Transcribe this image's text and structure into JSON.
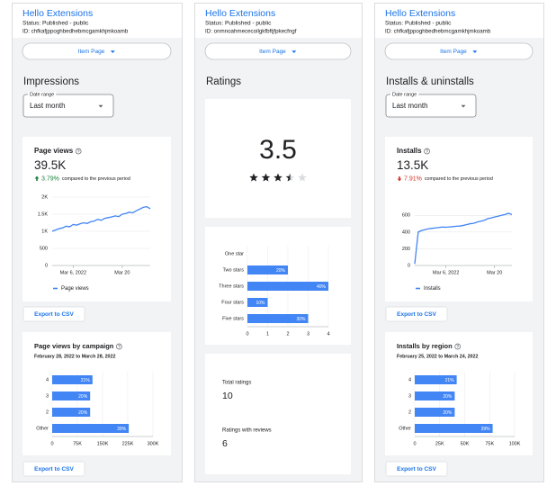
{
  "panels": [
    {
      "header": {
        "title": "Hello Extensions",
        "status": "Status: Published - public",
        "id": "ID: chfkafjppoghbedhebmcgamkhjmkoamb"
      },
      "button": "Item Page",
      "heading": "Impressions",
      "date_range": {
        "label": "Date range",
        "value": "Last month"
      },
      "metric_card": {
        "title": "Page views",
        "value": "39.5K",
        "change": "3.79%",
        "change_direction": "up",
        "comparison": "compared to the previous period",
        "chart": {
          "type": "line",
          "color": "#4285f4",
          "legend": "Page views",
          "values": [
            1000,
            1040,
            1080,
            1100,
            1150,
            1130,
            1200,
            1180,
            1220,
            1250,
            1230,
            1280,
            1300,
            1350,
            1320,
            1380,
            1400,
            1420,
            1450,
            1430,
            1500,
            1520,
            1560,
            1540,
            1600,
            1650,
            1700,
            1720,
            1660
          ],
          "ylim": [
            0,
            2000
          ],
          "yticks": [
            0,
            500,
            {
              "value": 1000,
              "label": "1K"
            },
            {
              "value": 1500,
              "label": "1.5K"
            },
            {
              "value": 2000,
              "label": "2K"
            }
          ],
          "xticks": [
            {
              "value": 6,
              "label": "Mar 6, 2022"
            },
            {
              "value": 20,
              "label": "Mar 20"
            }
          ]
        }
      },
      "exports": [
        "Export to CSV",
        "Export to CSV"
      ],
      "bar_card": {
        "title": "Page views by campaign",
        "subtitle": "February 28, 2022 to March 28, 2022",
        "chart": {
          "type": "bar",
          "color": "#4285f4",
          "categories": [
            "4",
            "3",
            "2",
            "Other"
          ],
          "values": [
            120000,
            113000,
            113000,
            228000
          ],
          "shares": [
            "21%",
            "20%",
            "20%",
            "39%"
          ],
          "xlim": [
            0,
            300000
          ],
          "xticks": [
            0,
            {
              "value": 75000,
              "label": "75K"
            },
            {
              "value": 150000,
              "label": "150K"
            },
            {
              "value": 225000,
              "label": "225K"
            },
            {
              "value": 300000,
              "label": "300K"
            }
          ]
        }
      }
    },
    {
      "header": {
        "title": "Hello Extensions",
        "status": "Status: Published - public",
        "id": "ID: onmnoahmececoilgkfbftjfpkecfngf"
      },
      "button": "Item Page",
      "heading": "Ratings",
      "rating_card": {
        "value": 3.5,
        "stars": 5
      },
      "ratings_chart": {
        "type": "bar",
        "color": "#4285f4",
        "categories": [
          "One star",
          "Two stars",
          "Three stars",
          "Four stars",
          "Five stars"
        ],
        "values": [
          0,
          2,
          4,
          1,
          3
        ],
        "shares": [
          null,
          "20%",
          "40%",
          "10%",
          "30%"
        ],
        "xlim": [
          0,
          4
        ],
        "xticks": [
          0,
          1,
          2,
          3,
          4
        ]
      },
      "totals": [
        {
          "label": "Total ratings",
          "value": 10
        },
        {
          "label": "Ratings with reviews",
          "value": 6
        }
      ]
    },
    {
      "header": {
        "title": "Hello Extensions",
        "status": "Status: Published - public",
        "id": "ID: chfkafjppoghbedhebmcgamkhjmkoamb"
      },
      "button": "Item Page",
      "heading": "Installs & uninstalls",
      "date_range": {
        "label": "Date range",
        "value": "Last month"
      },
      "metric_card": {
        "title": "Installs",
        "value": "13.5K",
        "change": "7.91%",
        "change_direction": "down",
        "comparison": "compared to the previous period",
        "chart": {
          "type": "line",
          "color": "#4285f4",
          "legend": "Installs",
          "values": [
            20,
            400,
            420,
            430,
            440,
            445,
            450,
            455,
            460,
            458,
            462,
            465,
            470,
            472,
            480,
            490,
            500,
            505,
            520,
            530,
            540,
            560,
            570,
            580,
            590,
            600,
            610,
            625,
            610
          ],
          "ylim": [
            0,
            700
          ],
          "yticks": [
            0,
            200,
            400,
            600
          ],
          "xticks": [
            {
              "value": 9,
              "label": "Mar 6, 2022"
            },
            {
              "value": 23,
              "label": "Mar 20"
            }
          ]
        }
      },
      "exports": [
        "Export to CSV",
        "Export to CSV"
      ],
      "bar_card": {
        "title": "Installs by region",
        "subtitle": "February 25, 2022 to March 24, 2022",
        "chart": {
          "type": "bar",
          "color": "#4285f4",
          "categories": [
            "4",
            "3",
            "2",
            "Other"
          ],
          "values": [
            42000,
            40000,
            40000,
            78000
          ],
          "shares": [
            "21%",
            "20%",
            "20%",
            "39%"
          ],
          "xlim": [
            0,
            100000
          ],
          "xticks": [
            0,
            {
              "value": 25000,
              "label": "25K"
            },
            {
              "value": 50000,
              "label": "50K"
            },
            {
              "value": 75000,
              "label": "75K"
            },
            {
              "value": 100000,
              "label": "100K"
            }
          ]
        }
      }
    }
  ]
}
